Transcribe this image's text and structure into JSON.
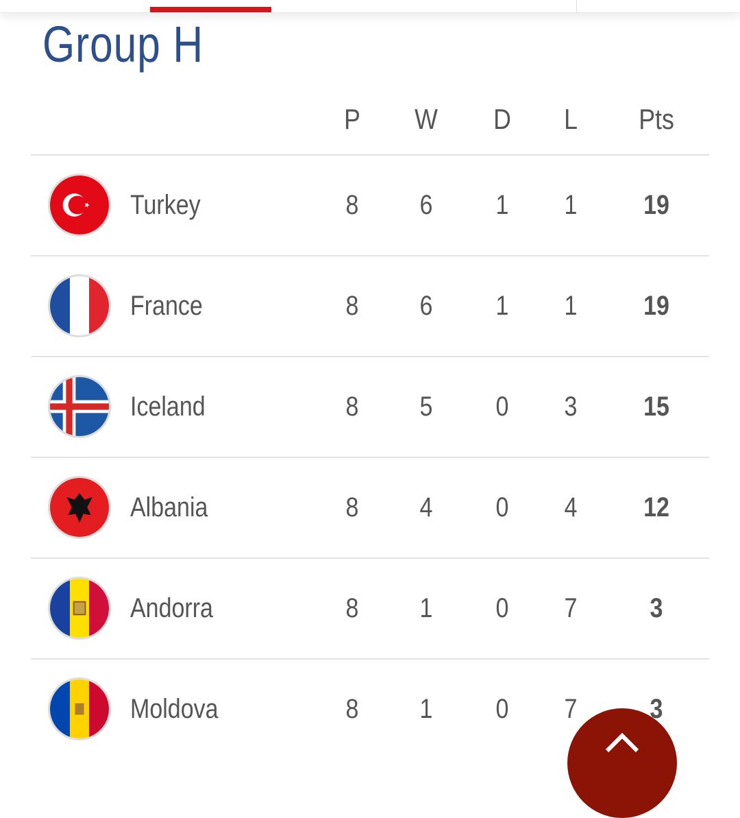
{
  "title": "Group H",
  "columns": [
    "P",
    "W",
    "D",
    "L",
    "Pts"
  ],
  "rows": [
    {
      "team": "Turkey",
      "flag": "turkey-flag",
      "P": "8",
      "W": "6",
      "D": "1",
      "L": "1",
      "Pts": "19"
    },
    {
      "team": "France",
      "flag": "france-flag",
      "P": "8",
      "W": "6",
      "D": "1",
      "L": "1",
      "Pts": "19"
    },
    {
      "team": "Iceland",
      "flag": "iceland-flag",
      "P": "8",
      "W": "5",
      "D": "0",
      "L": "3",
      "Pts": "15"
    },
    {
      "team": "Albania",
      "flag": "albania-flag",
      "P": "8",
      "W": "4",
      "D": "0",
      "L": "4",
      "Pts": "12"
    },
    {
      "team": "Andorra",
      "flag": "andorra-flag",
      "P": "8",
      "W": "1",
      "D": "0",
      "L": "7",
      "Pts": "3"
    },
    {
      "team": "Moldova",
      "flag": "moldova-flag",
      "P": "8",
      "W": "1",
      "D": "0",
      "L": "7",
      "Pts": "3"
    }
  ],
  "colors": {
    "title": "#2d4f8a",
    "tab_indicator": "#d0191f",
    "fab": "#8b1407"
  },
  "fab_icon": "chevron-up-icon"
}
